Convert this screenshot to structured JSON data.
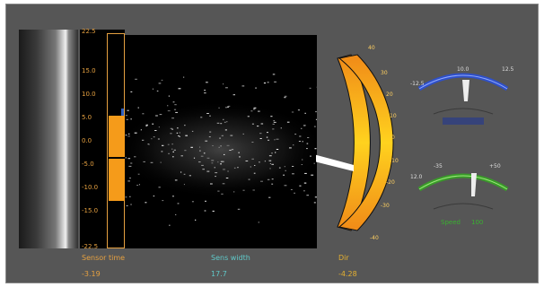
{
  "scale_ticks": [
    "22.5",
    "15.0",
    "10.0",
    "5.0",
    "0.0",
    "-5.0",
    "-10.0",
    "-15.0",
    "-22.5"
  ],
  "arc_scale": [
    "40",
    "30",
    "20",
    "10",
    "0",
    "-10",
    "-20",
    "-30",
    "-40"
  ],
  "gauge_blue": {
    "left": "-12.5",
    "mid": "10.0",
    "right": "12.5"
  },
  "gauge_green": {
    "left": "12.0",
    "mid": "-35",
    "right": "+50",
    "caption": "Speed",
    "value": "100"
  },
  "readouts": [
    {
      "label": "Sensor time",
      "value": "-3.19",
      "color": "#e5a040"
    },
    {
      "label": "Sens width",
      "value": "17.7",
      "color": "#60c8c8"
    },
    {
      "label": "Dir",
      "value": "-4.28",
      "color": "#e5b030"
    }
  ],
  "colors": {
    "orange": "#f59b1a",
    "blue": "#2f50c8",
    "green": "#3a9a2a",
    "cyan": "#60c8c8",
    "background": "#565656"
  }
}
